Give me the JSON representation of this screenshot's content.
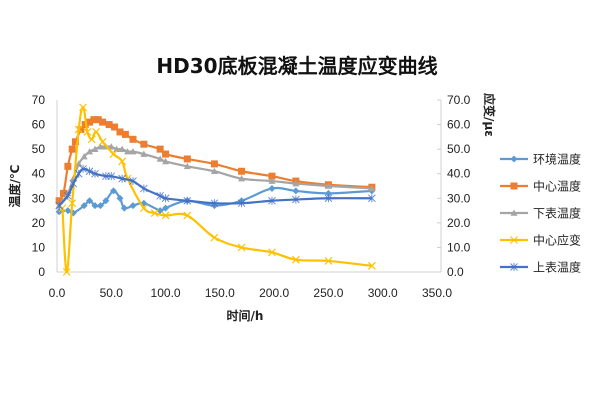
{
  "chart_data": {
    "type": "line",
    "title": "HD30底板混凝土温度应变曲线",
    "xlabel": "时间/h",
    "ylabel": "温度/℃",
    "y2label": "应变/με",
    "xlim": [
      0,
      350
    ],
    "ylim": [
      0,
      70
    ],
    "y2lim": [
      0,
      70
    ],
    "xticks": [
      "0.0",
      "50.0",
      "100.0",
      "150.0",
      "200.0",
      "250.0",
      "300.0",
      "350.0"
    ],
    "xtick_values": [
      0,
      50,
      100,
      150,
      200,
      250,
      300,
      350
    ],
    "yticks": [
      "0",
      "10",
      "20",
      "30",
      "40",
      "50",
      "60",
      "70"
    ],
    "ytick_values": [
      0,
      10,
      20,
      30,
      40,
      50,
      60,
      70
    ],
    "y2ticks": [
      "0.0",
      "10.0",
      "20.0",
      "30.0",
      "40.0",
      "50.0",
      "60.0",
      "70.0"
    ],
    "y2tick_values": [
      0,
      10,
      20,
      30,
      40,
      50,
      60,
      70
    ],
    "grid": false,
    "legend_position": "right",
    "series": [
      {
        "name": "环境温度",
        "axis": "left",
        "color": "#5B9BD5",
        "marker": "diamond",
        "x": [
          2,
          10,
          15,
          25,
          30,
          35,
          40,
          45,
          52,
          58,
          62,
          70,
          80,
          95,
          100,
          120,
          145,
          170,
          198,
          220,
          250,
          290
        ],
        "y": [
          24.5,
          25,
          24,
          27,
          29,
          27,
          27,
          29,
          33,
          30,
          26,
          27,
          28,
          25,
          26,
          29,
          27,
          29,
          34,
          33,
          32,
          33
        ]
      },
      {
        "name": "中心温度",
        "axis": "left",
        "color": "#ED7D31",
        "marker": "square",
        "x": [
          2,
          6,
          10,
          14,
          17,
          22,
          26,
          30,
          34,
          38,
          42,
          48,
          53,
          58,
          63,
          70,
          80,
          95,
          100,
          120,
          145,
          170,
          198,
          220,
          250,
          290
        ],
        "y": [
          29,
          32,
          43,
          50,
          53,
          58,
          60,
          61,
          62,
          62,
          61,
          60,
          59,
          57,
          56,
          54,
          52,
          50,
          48,
          46,
          44,
          41,
          39,
          37,
          35.5,
          34.5
        ]
      },
      {
        "name": "下表温度",
        "axis": "left",
        "color": "#A5A5A5",
        "marker": "triangle",
        "x": [
          2,
          10,
          15,
          20,
          25,
          30,
          35,
          40,
          45,
          50,
          55,
          60,
          65,
          70,
          80,
          95,
          100,
          120,
          145,
          170,
          198,
          220,
          250,
          290
        ],
        "y": [
          27,
          32,
          38,
          44,
          47,
          49,
          50,
          51,
          51,
          51,
          50,
          50,
          49,
          49,
          48,
          46,
          45,
          43,
          41,
          38,
          37,
          36,
          35,
          34
        ]
      },
      {
        "name": "中心应变",
        "axis": "right",
        "color": "#FFC000",
        "marker": "x",
        "x": [
          5,
          9,
          14,
          20,
          24,
          28,
          32,
          36,
          42,
          52,
          60,
          65,
          80,
          90,
          100,
          120,
          145,
          170,
          198,
          220,
          250,
          290
        ],
        "y": [
          26,
          0,
          28,
          58,
          67,
          57,
          54,
          57,
          53,
          48,
          45,
          38,
          26,
          24,
          23,
          23,
          14,
          10,
          8,
          5,
          4.5,
          2.5
        ]
      },
      {
        "name": "上表温度",
        "axis": "left",
        "color": "#4472C4",
        "marker": "star",
        "x": [
          2,
          10,
          15,
          20,
          24,
          30,
          35,
          45,
          50,
          60,
          70,
          80,
          95,
          100,
          120,
          145,
          170,
          198,
          220,
          250,
          290
        ],
        "y": [
          27,
          31,
          36,
          40,
          42,
          41,
          40,
          39,
          39,
          38,
          37,
          34,
          31,
          30,
          29,
          28,
          28,
          29,
          29.5,
          30,
          30
        ]
      }
    ]
  }
}
